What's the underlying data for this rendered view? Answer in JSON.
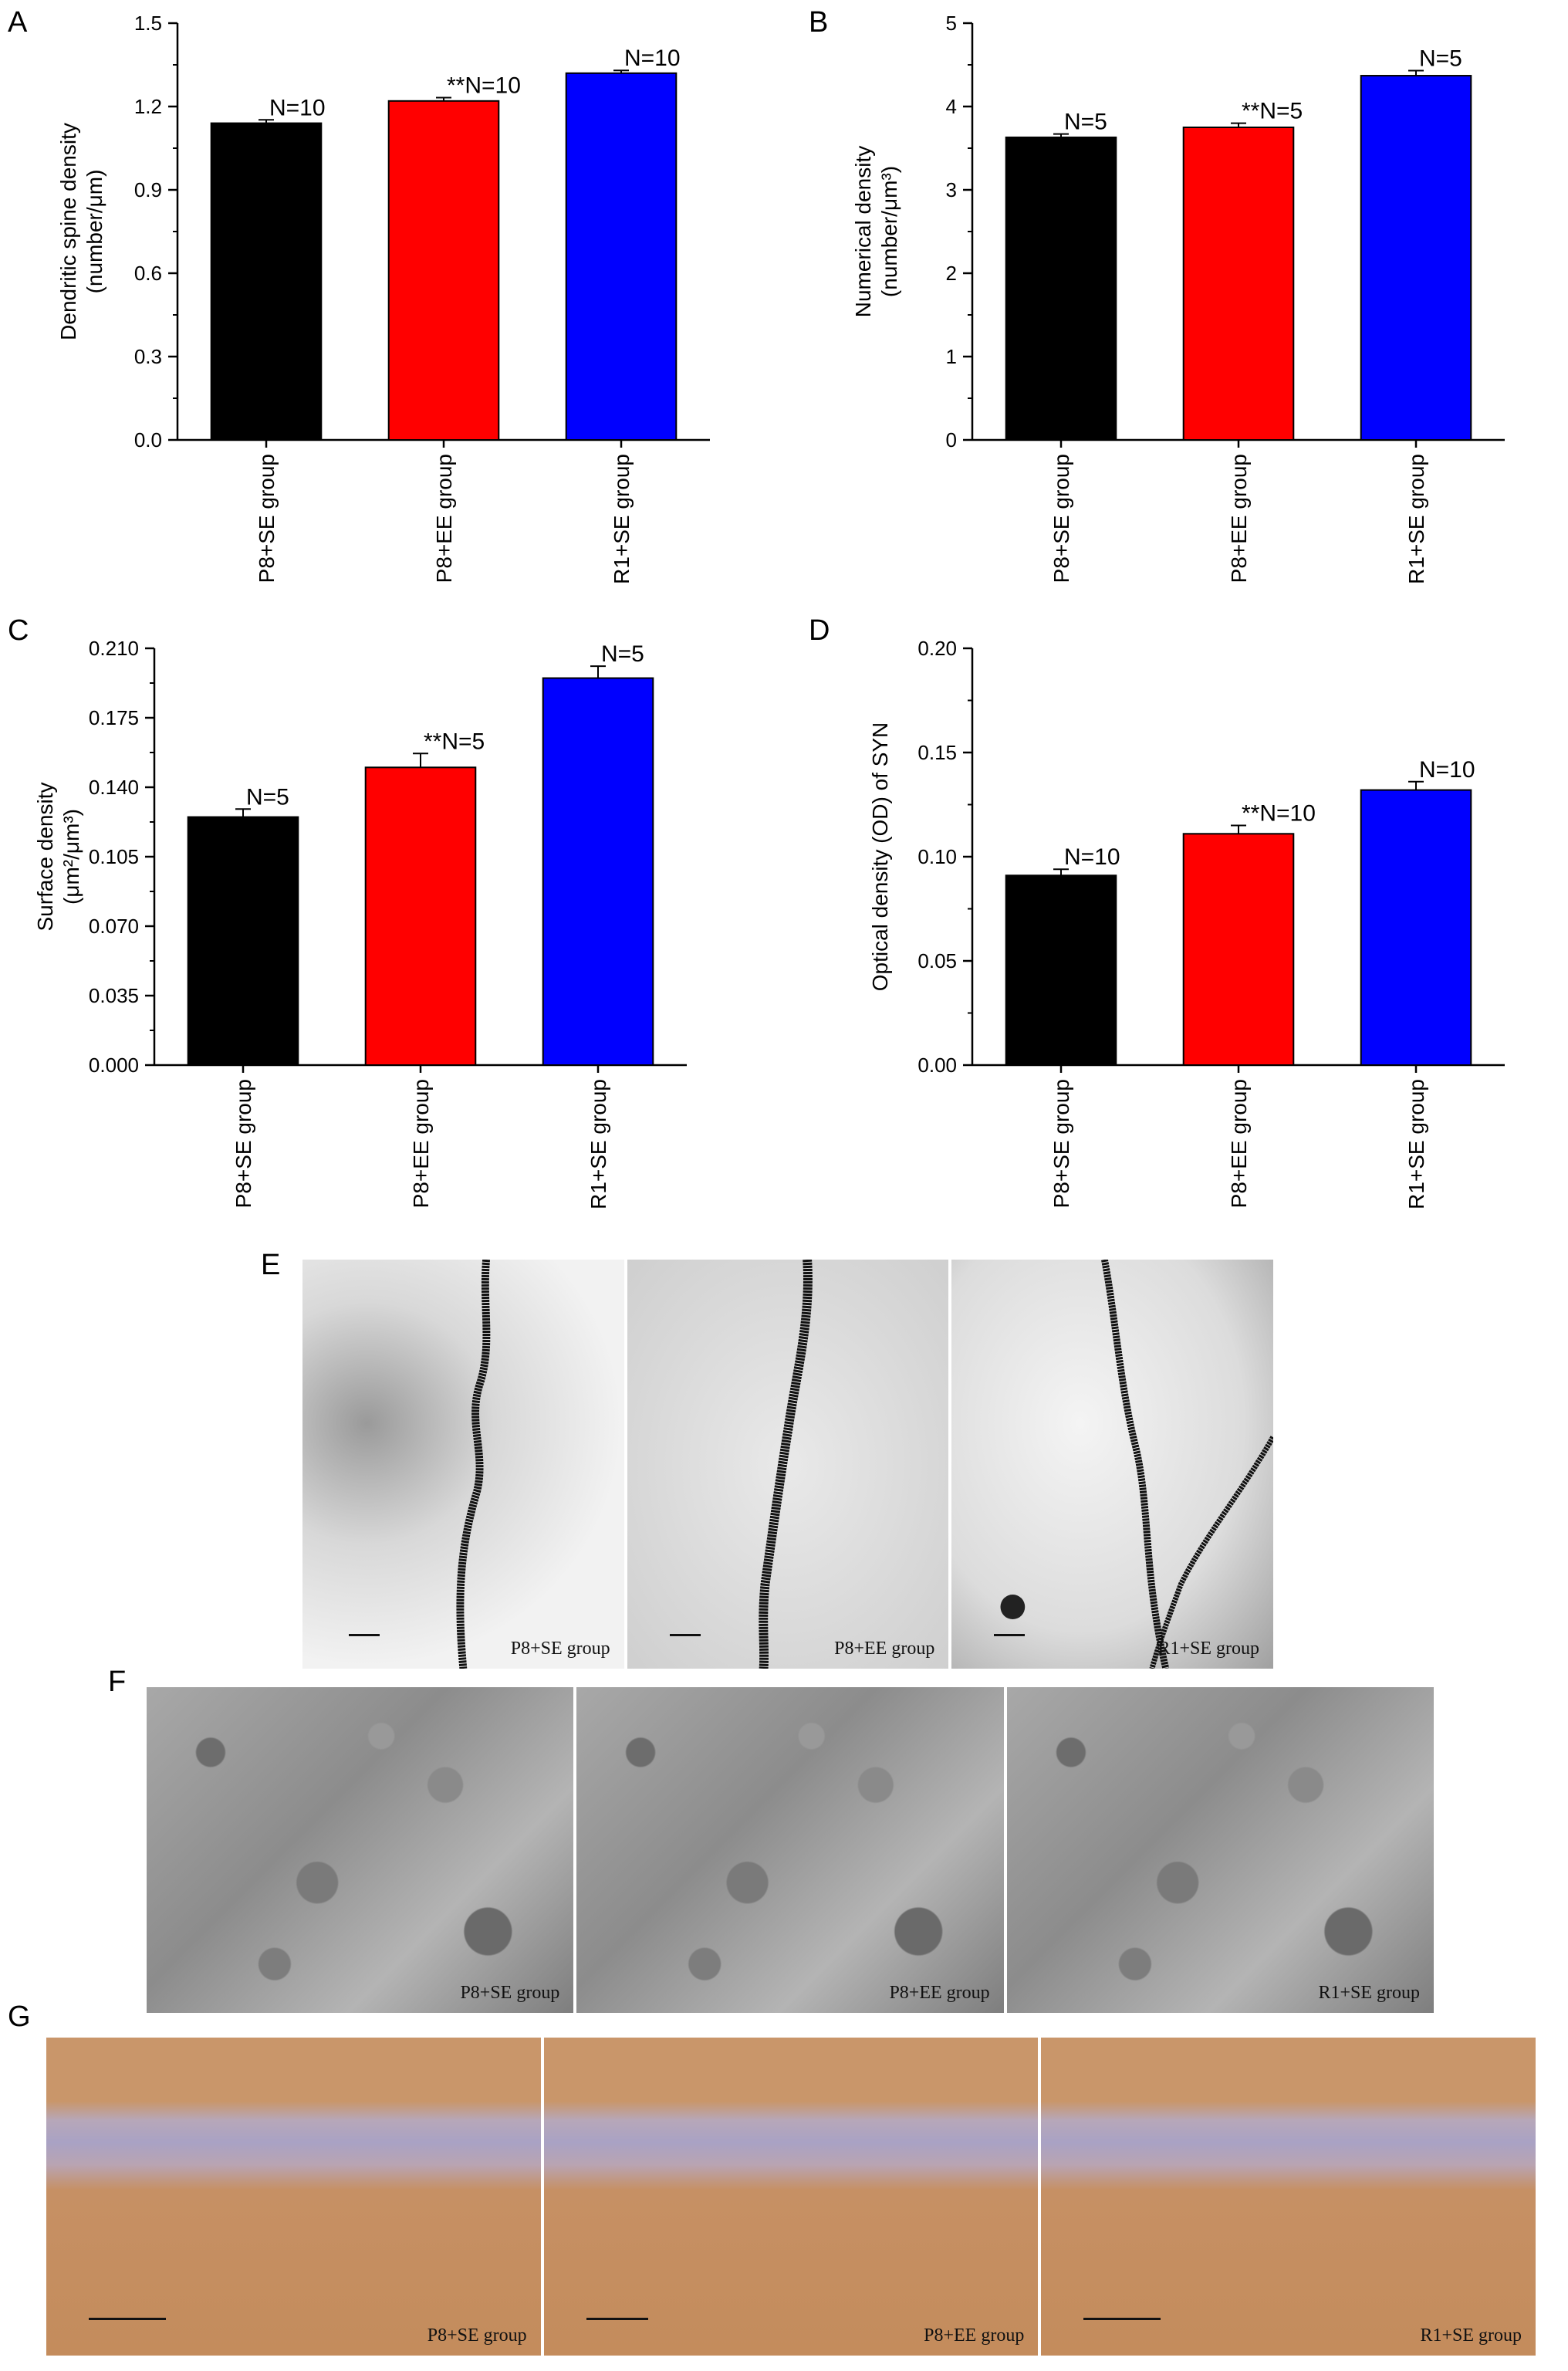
{
  "panels": {
    "A": "A",
    "B": "B",
    "C": "C",
    "D": "D",
    "E": "E",
    "F": "F",
    "G": "G"
  },
  "colors": {
    "P8+SE": "#000000",
    "P8+EE": "#ff0000",
    "R1+SE": "#0000ff"
  },
  "chart_data": [
    {
      "panel": "A",
      "type": "bar",
      "categories": [
        "P8+SE group",
        "P8+EE group",
        "R1+SE group"
      ],
      "values": [
        1.14,
        1.22,
        1.32
      ],
      "errors": [
        0.012,
        0.012,
        0.01
      ],
      "annotations": [
        "N=10",
        "**N=10",
        "N=10"
      ],
      "ylabel_line1": "Dendritic spine density",
      "ylabel_line2": "(number/μm)",
      "ylim": [
        0,
        1.5
      ],
      "yticks": [
        "0.0",
        "0.3",
        "0.6",
        "0.9",
        "1.2",
        "1.5"
      ]
    },
    {
      "panel": "B",
      "type": "bar",
      "categories": [
        "P8+SE group",
        "P8+EE group",
        "R1+SE group"
      ],
      "values": [
        3.63,
        3.75,
        4.37
      ],
      "errors": [
        0.04,
        0.05,
        0.06
      ],
      "annotations": [
        "N=5",
        "**N=5",
        "N=5"
      ],
      "ylabel_line1": "Numerical density",
      "ylabel_line2": "(number/μm³)",
      "ylim": [
        0,
        5
      ],
      "yticks": [
        "0",
        "1",
        "2",
        "3",
        "4",
        "5"
      ]
    },
    {
      "panel": "C",
      "type": "bar",
      "categories": [
        "P8+SE group",
        "P8+EE group",
        "R1+SE group"
      ],
      "values": [
        0.125,
        0.15,
        0.195
      ],
      "errors": [
        0.004,
        0.007,
        0.006
      ],
      "annotations": [
        "N=5",
        "**N=5",
        "N=5"
      ],
      "ylabel_line1": "Surface density",
      "ylabel_line2": "(μm²/μm³)",
      "ylim": [
        0,
        0.21
      ],
      "yticks": [
        "0.000",
        "0.035",
        "0.070",
        "0.105",
        "0.140",
        "0.175",
        "0.210"
      ]
    },
    {
      "panel": "D",
      "type": "bar",
      "categories": [
        "P8+SE group",
        "P8+EE group",
        "R1+SE group"
      ],
      "values": [
        0.091,
        0.111,
        0.132
      ],
      "errors": [
        0.003,
        0.004,
        0.004
      ],
      "annotations": [
        "N=10",
        "**N=10",
        "N=10"
      ],
      "ylabel_line1": "Optical density (OD) of SYN",
      "ylabel_line2": "",
      "ylim": [
        0,
        0.2
      ],
      "yticks": [
        "0.00",
        "0.05",
        "0.10",
        "0.15",
        "0.20"
      ]
    }
  ],
  "images": {
    "E": [
      "P8+SE group",
      "P8+EE group",
      "R1+SE group"
    ],
    "F": [
      "P8+SE group",
      "P8+EE group",
      "R1+SE group"
    ],
    "G": [
      "P8+SE group",
      "P8+EE group",
      "R1+SE group"
    ]
  }
}
